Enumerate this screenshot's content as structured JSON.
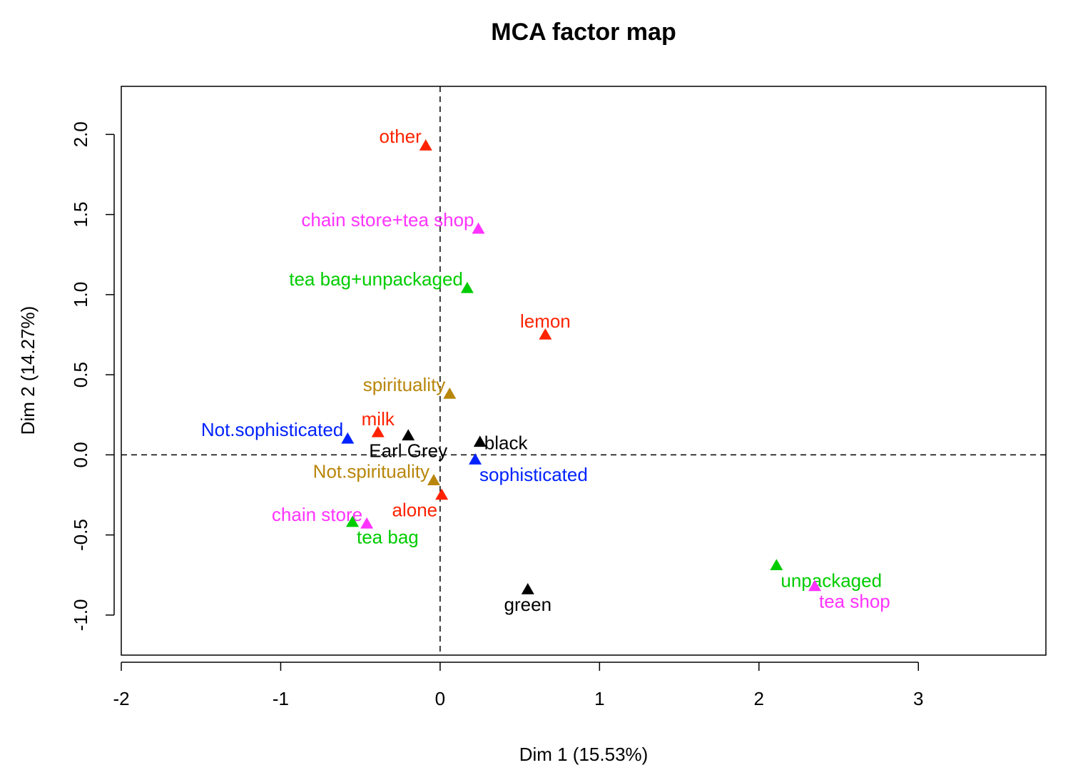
{
  "chart_data": {
    "type": "scatter",
    "title": "MCA factor map",
    "xlabel": "Dim 1 (15.53%)",
    "ylabel": "Dim 2 (14.27%)",
    "xlim": [
      -2.0,
      3.8
    ],
    "ylim": [
      -1.25,
      2.3
    ],
    "x_ticks": [
      -2,
      -1,
      0,
      1,
      2,
      3
    ],
    "x_tick_labels": [
      "-2",
      "-1",
      "0",
      "1",
      "2",
      "3"
    ],
    "y_ticks": [
      -1.0,
      -0.5,
      0.0,
      0.5,
      1.0,
      1.5,
      2.0
    ],
    "y_tick_labels": [
      "-1.0",
      "-0.5",
      "0.0",
      "0.5",
      "1.0",
      "1.5",
      "2.0"
    ],
    "reference_lines": [
      "x = 0",
      "y = 0"
    ],
    "grid": false,
    "marker": "triangle",
    "colors": {
      "red": "#ff2200",
      "magenta": "#ff33ff",
      "green": "#00cc00",
      "blue": "#0022ff",
      "black": "#000000",
      "goldenrod": "#b8860b"
    },
    "points": [
      {
        "label": "other",
        "x": -0.09,
        "y": 1.93,
        "color": "red",
        "label_pos": "left"
      },
      {
        "label": "chain store+tea shop",
        "x": 0.24,
        "y": 1.41,
        "color": "magenta",
        "label_pos": "left"
      },
      {
        "label": "tea bag+unpackaged",
        "x": 0.17,
        "y": 1.04,
        "color": "green",
        "label_pos": "left"
      },
      {
        "label": "lemon",
        "x": 0.66,
        "y": 0.75,
        "color": "red",
        "label_pos": "above"
      },
      {
        "label": "spirituality",
        "x": 0.06,
        "y": 0.38,
        "color": "goldenrod",
        "label_pos": "left"
      },
      {
        "label": "milk",
        "x": -0.39,
        "y": 0.14,
        "color": "red",
        "label_pos": "above"
      },
      {
        "label": "Not.sophisticated",
        "x": -0.58,
        "y": 0.1,
        "color": "blue",
        "label_pos": "left"
      },
      {
        "label": "Earl Grey",
        "x": -0.2,
        "y": 0.12,
        "color": "black",
        "label_pos": "below"
      },
      {
        "label": "black",
        "x": 0.25,
        "y": 0.08,
        "color": "black",
        "label_pos": "right"
      },
      {
        "label": "sophisticated",
        "x": 0.22,
        "y": -0.03,
        "color": "blue",
        "label_pos": "below-right"
      },
      {
        "label": "Not.spirituality",
        "x": -0.04,
        "y": -0.16,
        "color": "goldenrod",
        "label_pos": "left"
      },
      {
        "label": "alone",
        "x": 0.01,
        "y": -0.25,
        "color": "red",
        "label_pos": "below-left"
      },
      {
        "label": "chain store",
        "x": -0.46,
        "y": -0.43,
        "color": "magenta",
        "label_pos": "left"
      },
      {
        "label": "tea bag",
        "x": -0.55,
        "y": -0.42,
        "color": "green",
        "label_pos": "below-right"
      },
      {
        "label": "green",
        "x": 0.55,
        "y": -0.84,
        "color": "black",
        "label_pos": "below"
      },
      {
        "label": "unpackaged",
        "x": 2.11,
        "y": -0.69,
        "color": "green",
        "label_pos": "below-right"
      },
      {
        "label": "tea shop",
        "x": 2.35,
        "y": -0.82,
        "color": "magenta",
        "label_pos": "below-right"
      }
    ]
  }
}
